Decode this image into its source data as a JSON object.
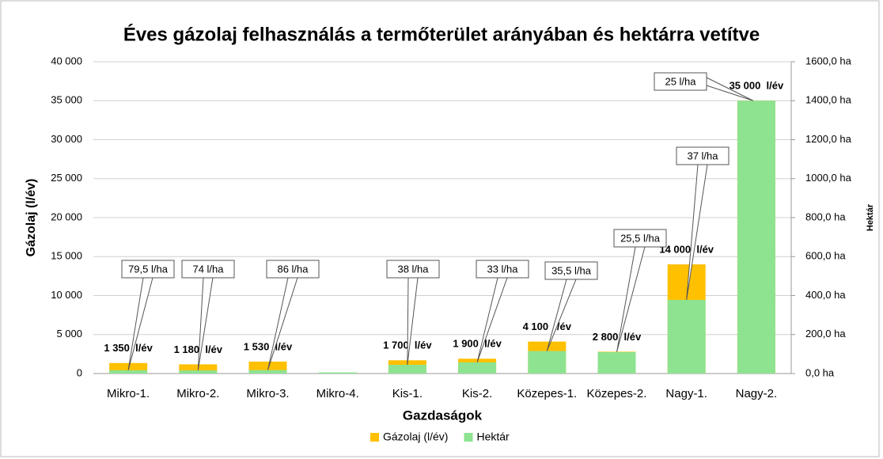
{
  "chart_data": {
    "type": "bar",
    "title": "Éves gázolaj felhasználás a termőterület arányában és hektárra vetítve",
    "x_label": "Gazdaságok",
    "y_label": "Gázolaj (l/év)",
    "y2_label": "Hektár",
    "categories": [
      "Mikro-1.",
      "Mikro-2.",
      "Mikro-3.",
      "Mikro-4.",
      "Kis-1.",
      "Kis-2.",
      "Közepes-1.",
      "Közepes-2.",
      "Nagy-1.",
      "Nagy-2."
    ],
    "series": [
      {
        "name": "Gázolaj (l/év)",
        "color": "#ffc000",
        "values": [
          1350,
          1180,
          1530,
          null,
          1700,
          1900,
          4100,
          2800,
          14000,
          35000
        ],
        "value_labels": [
          "1 350  l/év",
          "1 180  l/év",
          "1 530  l/év",
          null,
          "1 700  l/év",
          "1 900  l/év",
          "4 100  l/év",
          "2 800  l/év",
          "14 000  l/év",
          "35 000  l/év"
        ]
      },
      {
        "name": "Hektár",
        "color": "#8ee391",
        "axis": "y2",
        "values": [
          17,
          16,
          17.8,
          6,
          44.7,
          57.6,
          115.5,
          110,
          378,
          1400
        ]
      }
    ],
    "callouts": [
      "79,5 l/ha",
      "74 l/ha",
      "86 l/ha",
      null,
      "38 l/ha",
      "33 l/ha",
      "35,5 l/ha",
      "25,5 l/ha",
      "37 l/ha",
      "25 l/ha"
    ],
    "ylim": [
      0,
      40000
    ],
    "yticks": [
      0,
      {
        "value": 5000,
        "label": "5 000"
      },
      {
        "value": 10000,
        "label": "10 000"
      },
      {
        "value": 15000,
        "label": "15 000"
      },
      {
        "value": 20000,
        "label": "20 000"
      },
      {
        "value": 25000,
        "label": "25 000"
      },
      {
        "value": 30000,
        "label": "30 000"
      },
      {
        "value": 35000,
        "label": "35 000"
      },
      {
        "value": 40000,
        "label": "40 000"
      }
    ],
    "y2lim": [
      0,
      1600
    ],
    "y2ticks": [
      {
        "value": 0,
        "label": "0,0 ha"
      },
      {
        "value": 200,
        "label": "200,0 ha"
      },
      {
        "value": 400,
        "label": "400,0 ha"
      },
      {
        "value": 600,
        "label": "600,0 ha"
      },
      {
        "value": 800,
        "label": "800,0 ha"
      },
      {
        "value": 1000,
        "label": "1000,0 ha"
      },
      {
        "value": 1200,
        "label": "1200,0 ha"
      },
      {
        "value": 1400,
        "label": "1400,0 ha"
      },
      {
        "value": 1600,
        "label": "1600,0 ha"
      }
    ],
    "grid": true,
    "legend": "bottom"
  }
}
